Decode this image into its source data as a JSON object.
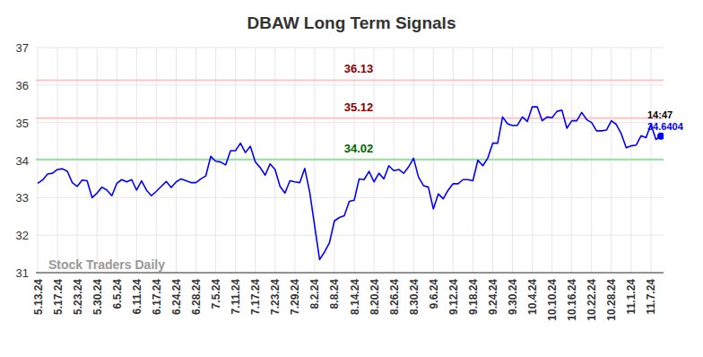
{
  "chart_data": {
    "type": "line",
    "title": "DBAW Long Term Signals",
    "color": "#0000ff",
    "grid": true,
    "marker": "last",
    "ylim": [
      31,
      37
    ],
    "yticks": [
      31,
      32,
      33,
      34,
      35,
      36,
      37
    ],
    "categories": [
      "5.13.24",
      null,
      null,
      null,
      "5.17.24",
      null,
      null,
      null,
      "5.23.24",
      null,
      null,
      null,
      "5.30.24",
      null,
      null,
      null,
      "6.5.24",
      null,
      null,
      null,
      "6.11.24",
      null,
      null,
      null,
      "6.17.24",
      null,
      null,
      null,
      "6.24.24",
      null,
      null,
      null,
      "6.28.24",
      null,
      null,
      null,
      "7.5.24",
      null,
      null,
      null,
      "7.11.24",
      null,
      null,
      null,
      "7.17.24",
      null,
      null,
      null,
      "7.23.24",
      null,
      null,
      null,
      "7.29.24",
      null,
      null,
      null,
      "8.2.24",
      null,
      null,
      null,
      "8.8.24",
      null,
      null,
      null,
      "8.14.24",
      null,
      null,
      null,
      "8.20.24",
      null,
      null,
      null,
      "8.26.24",
      null,
      null,
      null,
      "8.30.24",
      null,
      null,
      null,
      "9.6.24",
      null,
      null,
      null,
      "9.12.24",
      null,
      null,
      null,
      "9.18.24",
      null,
      null,
      null,
      "9.24.24",
      null,
      null,
      null,
      "9.30.24",
      null,
      null,
      null,
      "10.4.24",
      null,
      null,
      null,
      "10.10.24",
      null,
      null,
      null,
      "10.16.24",
      null,
      null,
      null,
      "10.22.24",
      null,
      null,
      null,
      "10.28.24",
      null,
      null,
      null,
      "11.1.24",
      null,
      null,
      null,
      "11.7.24",
      null,
      null
    ],
    "values": [
      33.38,
      33.47,
      33.63,
      33.65,
      33.75,
      33.77,
      33.7,
      33.4,
      33.3,
      33.47,
      33.45,
      33.0,
      33.12,
      33.28,
      33.2,
      33.05,
      33.38,
      33.48,
      33.42,
      33.48,
      33.2,
      33.45,
      33.2,
      33.05,
      33.17,
      33.3,
      33.43,
      33.27,
      33.42,
      33.5,
      33.45,
      33.4,
      33.4,
      33.5,
      33.58,
      34.1,
      33.97,
      33.95,
      33.87,
      34.25,
      34.25,
      34.45,
      34.2,
      34.37,
      33.95,
      33.8,
      33.6,
      33.9,
      33.75,
      33.3,
      33.12,
      33.45,
      33.42,
      33.4,
      33.78,
      33.15,
      32.25,
      31.35,
      31.55,
      31.8,
      32.38,
      32.47,
      32.52,
      32.9,
      32.93,
      33.5,
      33.48,
      33.7,
      33.42,
      33.65,
      33.5,
      33.85,
      33.72,
      33.75,
      33.65,
      33.82,
      34.05,
      33.55,
      33.32,
      33.28,
      32.7,
      33.1,
      32.97,
      33.2,
      33.37,
      33.37,
      33.48,
      33.48,
      33.45,
      34.0,
      33.85,
      34.05,
      34.45,
      34.45,
      35.15,
      34.97,
      34.92,
      34.93,
      35.15,
      35.03,
      35.42,
      35.42,
      35.05,
      35.15,
      35.13,
      35.3,
      35.33,
      34.85,
      35.05,
      35.05,
      35.27,
      35.08,
      35.0,
      34.78,
      34.78,
      34.8,
      35.05,
      34.95,
      34.7,
      34.33,
      34.38,
      34.4,
      34.65,
      34.6,
      34.95,
      34.55,
      34.6404
    ],
    "annotations": [
      {
        "type": "line",
        "text": "36.13",
        "y": 36.13,
        "color": "#8b0000"
      },
      {
        "type": "line",
        "text": "35.12",
        "y": 35.12,
        "color": "#8b0000"
      },
      {
        "type": "line",
        "text": "34.02",
        "y": 34.02,
        "color": "#006400"
      },
      {
        "type": "time",
        "text": "14:47",
        "color": "#000000"
      },
      {
        "type": "last_value",
        "text": "34.6404",
        "y": 34.6404,
        "color": "#0000ff"
      },
      {
        "type": "watermark",
        "text": "Stock Traders Daily",
        "color": "#999999"
      }
    ]
  }
}
